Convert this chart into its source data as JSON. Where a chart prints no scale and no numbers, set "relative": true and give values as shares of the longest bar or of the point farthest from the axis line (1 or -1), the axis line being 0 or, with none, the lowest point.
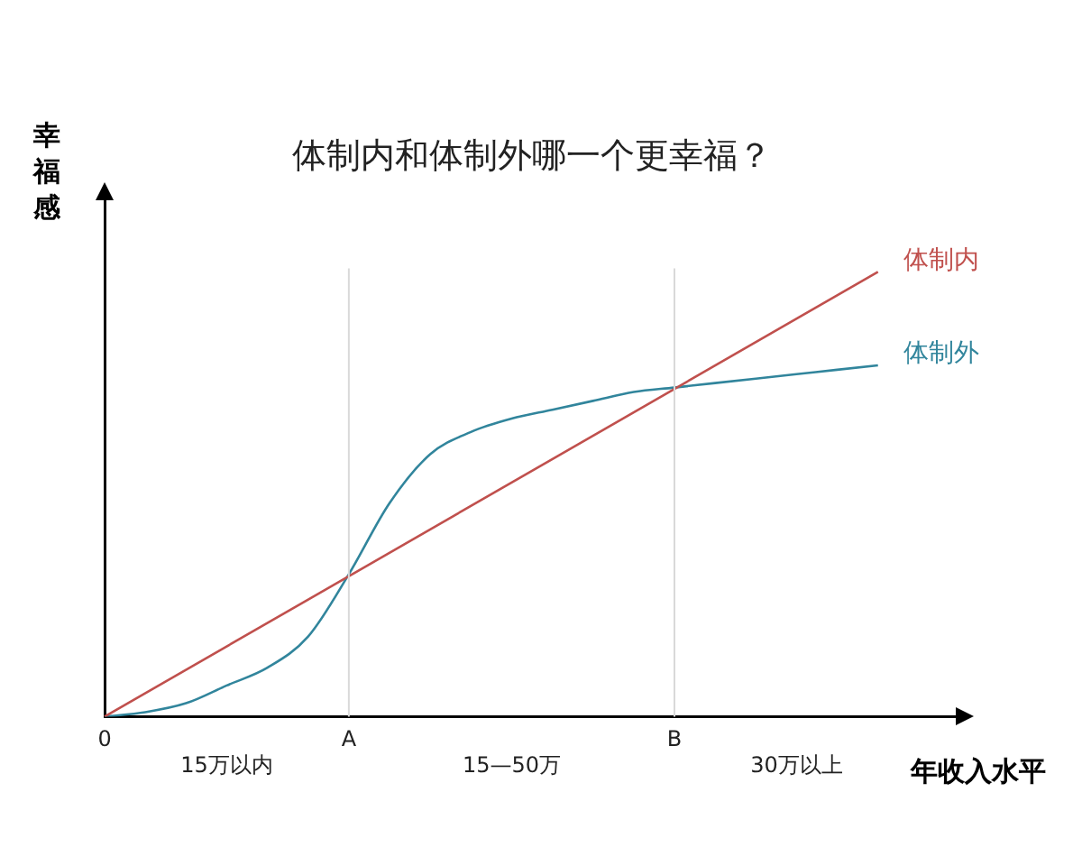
{
  "chart_data": {
    "type": "line",
    "title": "体制内和体制外哪一个更幸福？",
    "xlabel": "年收入水平",
    "ylabel": "幸福感",
    "relative": true,
    "categories": [
      "0",
      null,
      null,
      "15万以内",
      null,
      null,
      "A",
      null,
      null,
      null,
      "15—50万",
      null,
      null,
      null,
      "B",
      null,
      null,
      "30万以上",
      null,
      null,
      null,
      null
    ],
    "series": [
      {
        "name": "体制内",
        "color": "#c0504d",
        "values": [
          0,
          null,
          null,
          null,
          null,
          null,
          null,
          null,
          null,
          null,
          null,
          null,
          null,
          null,
          null,
          null,
          null,
          null,
          null,
          1,
          null,
          null
        ]
      },
      {
        "name": "体制外",
        "color": "#31859c",
        "values": [
          0,
          0.01,
          0.03,
          0.07,
          0.11,
          0.18,
          0.32,
          0.48,
          0.59,
          0.64,
          0.67,
          0.69,
          0.71,
          0.73,
          0.74,
          0.75,
          0.76,
          0.77,
          0.78,
          0.79,
          null,
          null
        ]
      }
    ],
    "ref_lines": [
      {
        "axis": "x",
        "value": "A",
        "color": "#d9d9d9"
      },
      {
        "axis": "x",
        "value": "B",
        "color": "#d9d9d9"
      }
    ],
    "grid": false,
    "legend": false,
    "tick_labels": "x",
    "marker": "none",
    "line_style": "solid"
  }
}
